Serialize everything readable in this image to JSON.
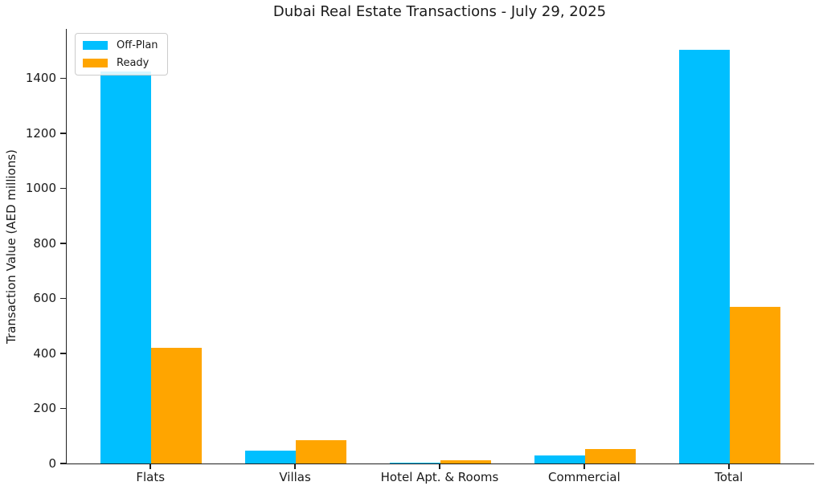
{
  "chart_data": {
    "type": "bar",
    "title": "Dubai Real Estate Transactions - July 29, 2025",
    "xlabel": "",
    "ylabel": "Transaction Value (AED millions)",
    "categories": [
      "Flats",
      "Villas",
      "Hotel Apt. & Rooms",
      "Commercial",
      "Total"
    ],
    "series": [
      {
        "name": "Off-Plan",
        "color": "#00BFFF",
        "values": [
          1425,
          46,
          3,
          30,
          1504
        ]
      },
      {
        "name": "Ready",
        "color": "#FFA500",
        "values": [
          420,
          84,
          12,
          53,
          569
        ]
      }
    ],
    "ylim": [
      0,
      1580
    ],
    "yticks": [
      0,
      200,
      400,
      600,
      800,
      1000,
      1200,
      1400
    ],
    "grid": false,
    "legend_position": "upper-left",
    "bar_width_fraction": 0.35,
    "axis_color": "#1f1f1f"
  }
}
